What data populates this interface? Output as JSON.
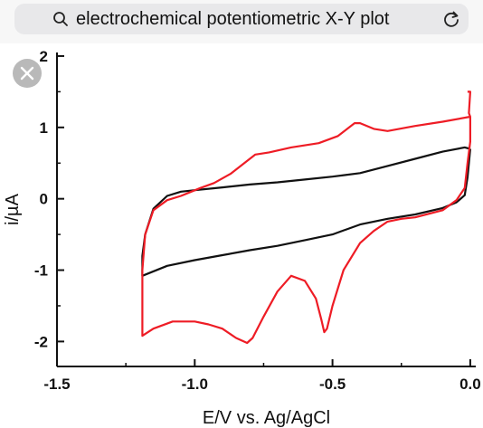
{
  "search": {
    "query": "electrochemical potentiometric X-Y plot",
    "icon": "search-icon",
    "reload_icon": "reload-icon"
  },
  "overlay": {
    "close_icon": "close-icon"
  },
  "colors": {
    "black_curve": "#111111",
    "red_curve": "#ee1c25",
    "search_bg": "#e8e8ea"
  },
  "chart_data": {
    "type": "line",
    "xlabel": "E/V vs. Ag/AgCl",
    "ylabel": "i/µA",
    "xlim": [
      -1.5,
      0.02
    ],
    "ylim": [
      -2.35,
      2.05
    ],
    "xticks": [
      -1.5,
      -1.0,
      -0.5,
      0.0
    ],
    "xtick_labels": [
      "-1.5",
      "-1.0",
      "-0.5",
      "0.0"
    ],
    "yticks": [
      -2,
      -1,
      0,
      1,
      2
    ],
    "ytick_labels": [
      "-2",
      "-1",
      "0",
      "1",
      "2"
    ],
    "grid": false,
    "series": [
      {
        "color": "#111111",
        "points": [
          [
            0.0,
            0.7
          ],
          [
            -0.02,
            0.72
          ],
          [
            -0.1,
            0.66
          ],
          [
            -0.2,
            0.56
          ],
          [
            -0.3,
            0.46
          ],
          [
            -0.4,
            0.36
          ],
          [
            -0.5,
            0.31
          ],
          [
            -0.6,
            0.27
          ],
          [
            -0.7,
            0.23
          ],
          [
            -0.8,
            0.2
          ],
          [
            -0.9,
            0.16
          ],
          [
            -1.0,
            0.12
          ],
          [
            -1.05,
            0.1
          ],
          [
            -1.1,
            0.04
          ],
          [
            -1.15,
            -0.14
          ],
          [
            -1.18,
            -0.5
          ],
          [
            -1.19,
            -0.8
          ],
          [
            -1.19,
            -1.08
          ],
          [
            -1.1,
            -0.94
          ],
          [
            -1.0,
            -0.86
          ],
          [
            -0.9,
            -0.79
          ],
          [
            -0.8,
            -0.72
          ],
          [
            -0.7,
            -0.66
          ],
          [
            -0.6,
            -0.58
          ],
          [
            -0.5,
            -0.5
          ],
          [
            -0.45,
            -0.43
          ],
          [
            -0.4,
            -0.36
          ],
          [
            -0.35,
            -0.32
          ],
          [
            -0.3,
            -0.28
          ],
          [
            -0.2,
            -0.22
          ],
          [
            -0.1,
            -0.13
          ],
          [
            -0.05,
            -0.05
          ],
          [
            -0.02,
            0.05
          ],
          [
            -0.01,
            0.3
          ],
          [
            0.0,
            0.7
          ]
        ]
      },
      {
        "color": "#ee1c25",
        "points": [
          [
            -0.01,
            1.5
          ],
          [
            0.0,
            1.5
          ],
          [
            -0.005,
            1.2
          ],
          [
            0.0,
            1.15
          ],
          [
            -0.1,
            1.08
          ],
          [
            -0.2,
            1.02
          ],
          [
            -0.3,
            0.95
          ],
          [
            -0.35,
            0.98
          ],
          [
            -0.4,
            1.06
          ],
          [
            -0.42,
            1.06
          ],
          [
            -0.48,
            0.88
          ],
          [
            -0.55,
            0.78
          ],
          [
            -0.65,
            0.72
          ],
          [
            -0.73,
            0.65
          ],
          [
            -0.78,
            0.62
          ],
          [
            -0.82,
            0.5
          ],
          [
            -0.87,
            0.35
          ],
          [
            -0.93,
            0.22
          ],
          [
            -0.98,
            0.15
          ],
          [
            -1.05,
            0.04
          ],
          [
            -1.1,
            -0.02
          ],
          [
            -1.15,
            -0.16
          ],
          [
            -1.18,
            -0.5
          ],
          [
            -1.19,
            -1.0
          ],
          [
            -1.19,
            -1.5
          ],
          [
            -1.19,
            -1.92
          ],
          [
            -1.15,
            -1.82
          ],
          [
            -1.08,
            -1.72
          ],
          [
            -1.0,
            -1.72
          ],
          [
            -0.95,
            -1.76
          ],
          [
            -0.9,
            -1.82
          ],
          [
            -0.85,
            -1.95
          ],
          [
            -0.81,
            -2.02
          ],
          [
            -0.79,
            -1.95
          ],
          [
            -0.75,
            -1.65
          ],
          [
            -0.7,
            -1.3
          ],
          [
            -0.65,
            -1.08
          ],
          [
            -0.6,
            -1.15
          ],
          [
            -0.56,
            -1.4
          ],
          [
            -0.54,
            -1.7
          ],
          [
            -0.53,
            -1.87
          ],
          [
            -0.52,
            -1.82
          ],
          [
            -0.5,
            -1.5
          ],
          [
            -0.46,
            -1.0
          ],
          [
            -0.4,
            -0.62
          ],
          [
            -0.35,
            -0.45
          ],
          [
            -0.3,
            -0.32
          ],
          [
            -0.25,
            -0.28
          ],
          [
            -0.2,
            -0.26
          ],
          [
            -0.1,
            -0.16
          ],
          [
            -0.05,
            -0.02
          ],
          [
            -0.02,
            0.15
          ],
          [
            -0.01,
            0.5
          ],
          [
            0.0,
            0.8
          ],
          [
            0.0,
            1.15
          ]
        ]
      }
    ]
  }
}
